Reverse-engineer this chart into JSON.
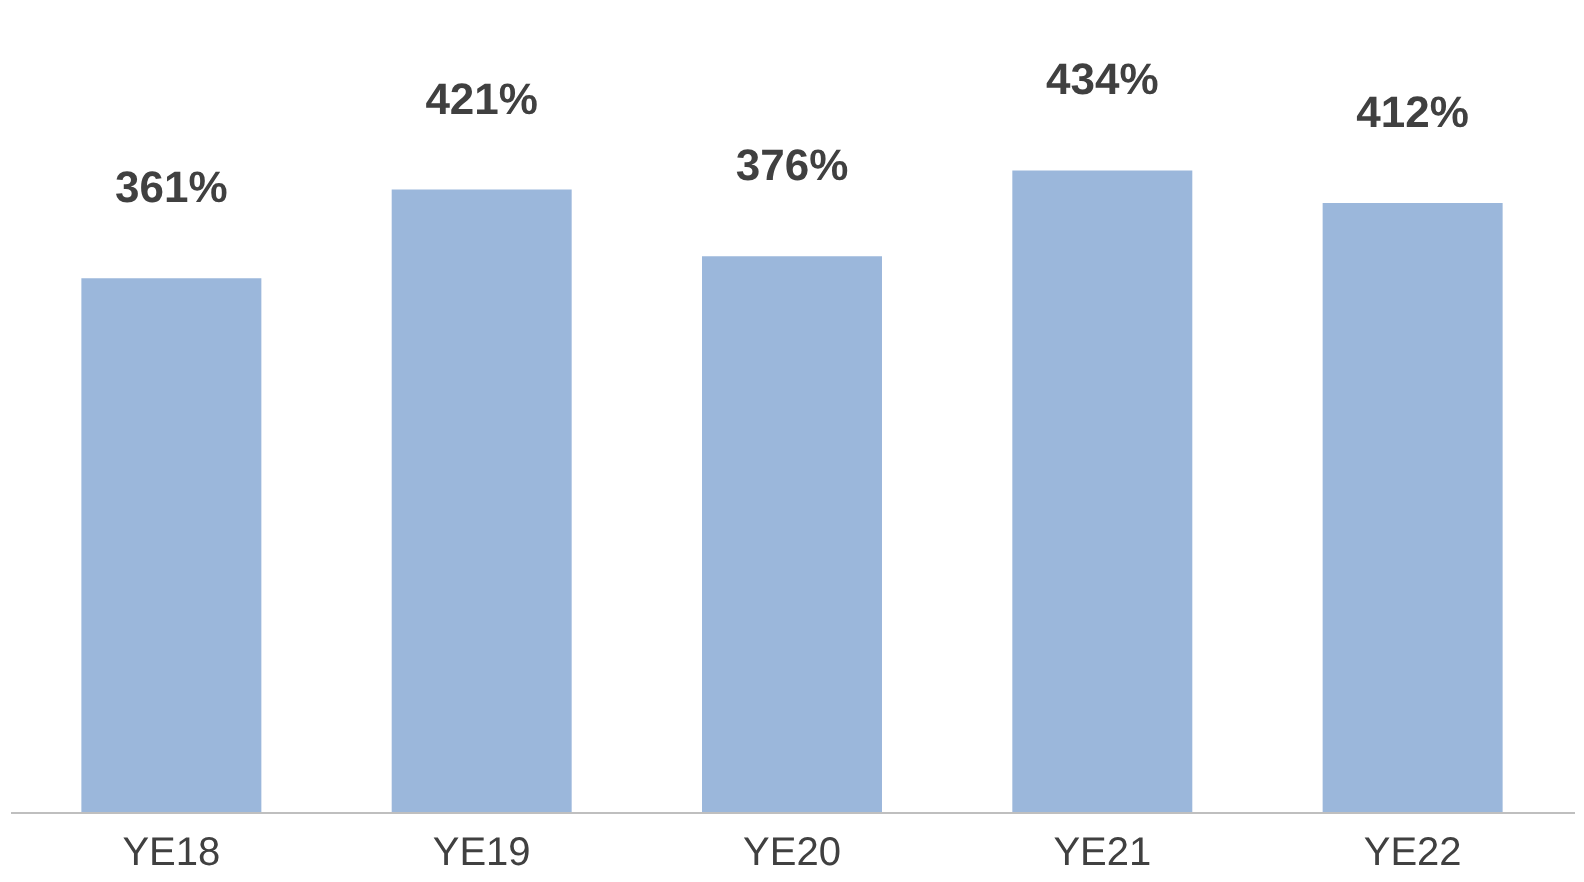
{
  "chart_data": {
    "type": "bar",
    "categories": [
      "YE18",
      "YE19",
      "YE20",
      "YE21",
      "YE22"
    ],
    "values": [
      361,
      421,
      376,
      434,
      412
    ],
    "value_labels": [
      "361%",
      "421%",
      "376%",
      "434%",
      "412%"
    ],
    "color": "#9bb7db",
    "grid": false
  }
}
